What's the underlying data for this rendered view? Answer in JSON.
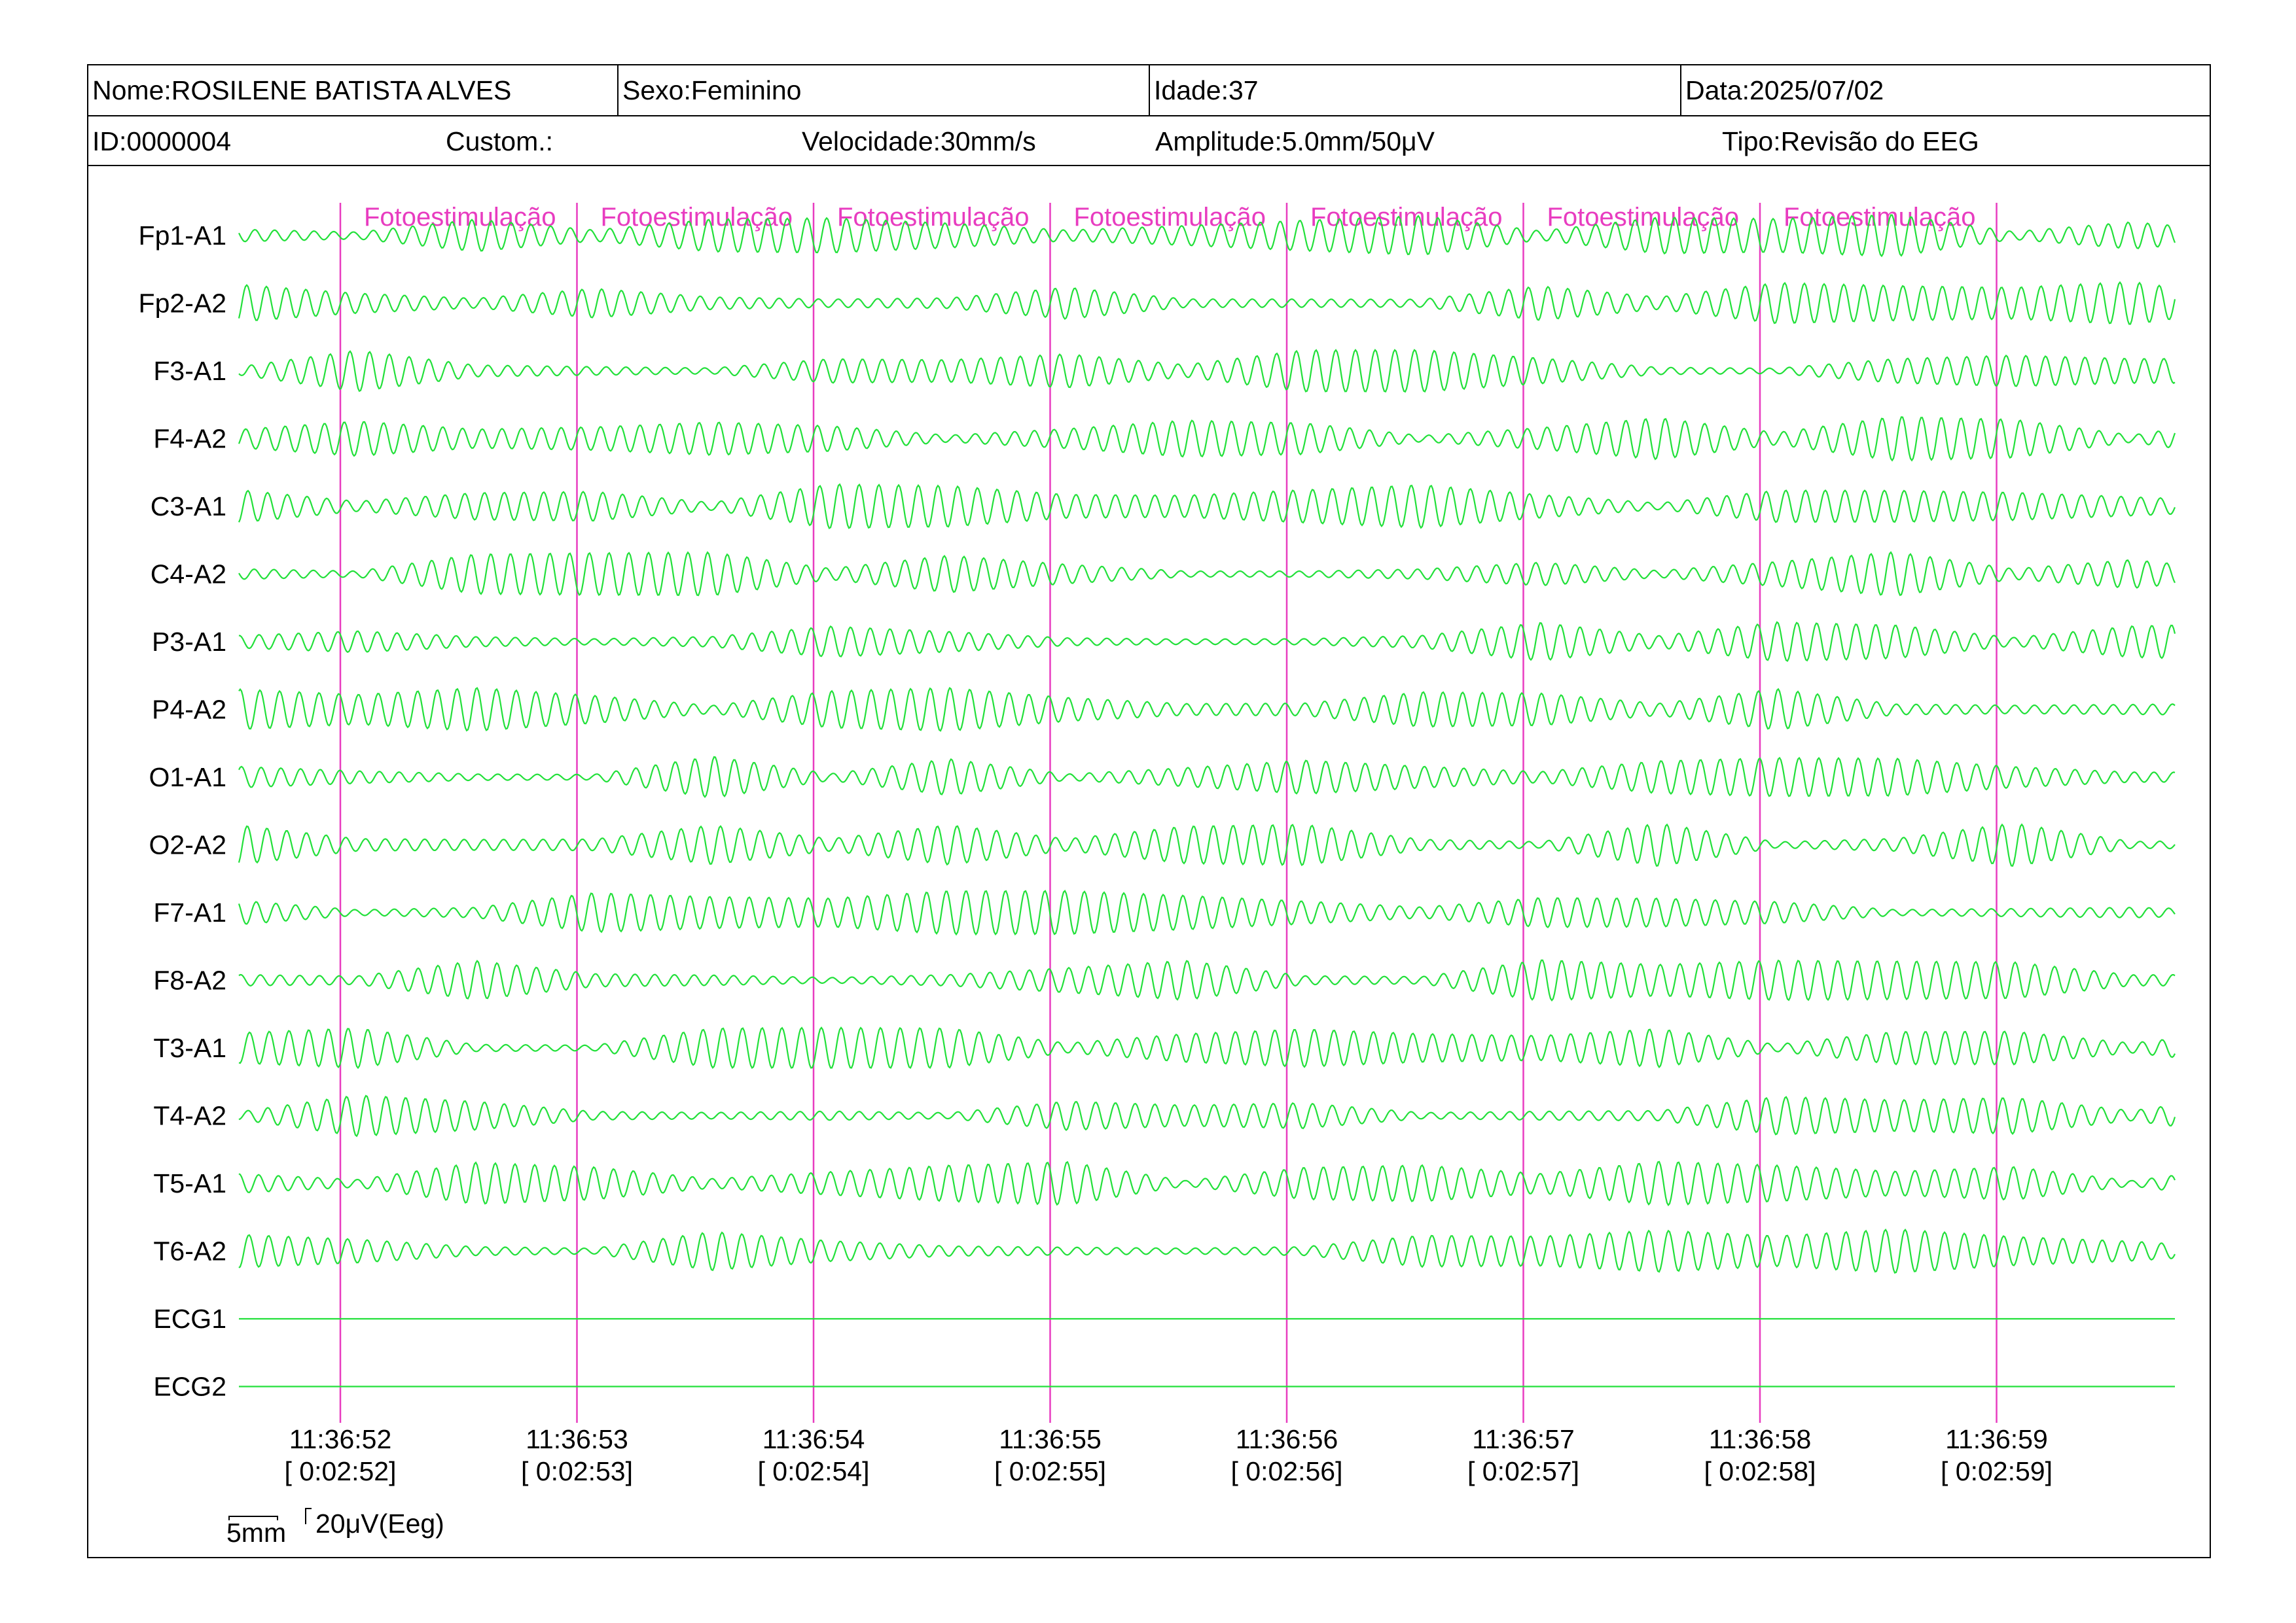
{
  "header": {
    "name": "Nome:ROSILENE BATISTA ALVES",
    "sex": "Sexo:Feminino",
    "age": "Idade:37",
    "date": "Data:2025/07/02",
    "id": "ID:0000004",
    "custom": "Custom.:",
    "speed": "Velocidade:30mm/s",
    "amplitude": "Amplitude:5.0mm/50μV",
    "type": "Tipo:Revisão do EEG"
  },
  "scale_bar": {
    "time_label": "5mm",
    "amp_label": "20μV(Eeg)"
  },
  "colors": {
    "trace": "#22e03a",
    "marker": "#e83cc0",
    "text": "#000000"
  },
  "chart_data": {
    "type": "line",
    "title": "",
    "xlabel": "",
    "ylabel": "",
    "channels": [
      "Fp1-A1",
      "Fp2-A2",
      "F3-A1",
      "F4-A2",
      "C3-A1",
      "C4-A2",
      "P3-A1",
      "P4-A2",
      "O1-A1",
      "O2-A2",
      "F7-A1",
      "F8-A2",
      "T3-A1",
      "T4-A2",
      "T5-A1",
      "T6-A2",
      "ECG1",
      "ECG2"
    ],
    "flat_channels": [
      "ECG1",
      "ECG2"
    ],
    "time_ticks": [
      {
        "clock": "11:36:52",
        "elapsed": "[ 0:02:52]"
      },
      {
        "clock": "11:36:53",
        "elapsed": "[ 0:02:53]"
      },
      {
        "clock": "11:36:54",
        "elapsed": "[ 0:02:54]"
      },
      {
        "clock": "11:36:55",
        "elapsed": "[ 0:02:55]"
      },
      {
        "clock": "11:36:56",
        "elapsed": "[ 0:02:56]"
      },
      {
        "clock": "11:36:57",
        "elapsed": "[ 0:02:57]"
      },
      {
        "clock": "11:36:58",
        "elapsed": "[ 0:02:58]"
      },
      {
        "clock": "11:36:59",
        "elapsed": "[ 0:02:59]"
      }
    ],
    "markers": [
      {
        "label": "Fotoestimulação"
      },
      {
        "label": "Fotoestimulação"
      },
      {
        "label": "Fotoestimulação"
      },
      {
        "label": "Fotoestimulação"
      },
      {
        "label": "Fotoestimulação"
      },
      {
        "label": "Fotoestimulação"
      },
      {
        "label": "Fotoestimulação"
      }
    ],
    "oscillation_cycles_per_second": 12
  }
}
